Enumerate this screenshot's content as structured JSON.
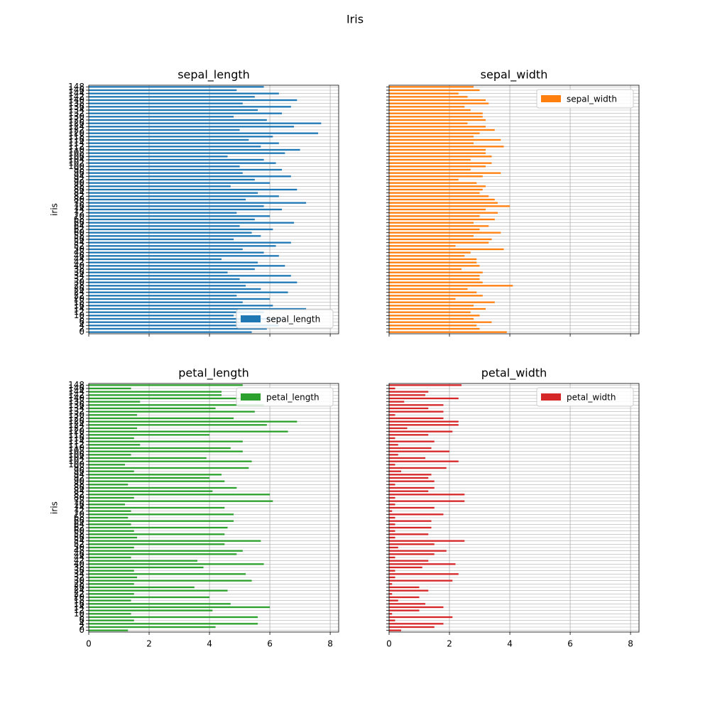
{
  "title": "Iris",
  "chart_data": [
    {
      "type": "barh",
      "title": "sepal_length",
      "ylabel": "iris",
      "categories": [
        0,
        2,
        4,
        6,
        8,
        10,
        12,
        14,
        16,
        18,
        20,
        22,
        24,
        26,
        28,
        30,
        32,
        34,
        36,
        38,
        40,
        42,
        44,
        46,
        48,
        50,
        52,
        54,
        56,
        58,
        60,
        62,
        64,
        66,
        68,
        70,
        72,
        74,
        76,
        78,
        80,
        82,
        84,
        86,
        88,
        90,
        92,
        94,
        96,
        98,
        100,
        102,
        104,
        106,
        108,
        110,
        112,
        114,
        116,
        118,
        120,
        122,
        124,
        126,
        128,
        130,
        132,
        134,
        136,
        138,
        140,
        142,
        144,
        146,
        148
      ],
      "series": [
        {
          "name": "sepal_length",
          "color": "#1f77b4",
          "values": [
            5.4,
            5.9,
            6.3,
            5.0,
            6.4,
            4.8,
            5.8,
            7.2,
            6.1,
            5.1,
            6.0,
            4.9,
            6.6,
            5.7,
            5.2,
            6.9,
            5.0,
            6.7,
            4.6,
            5.5,
            6.5,
            5.6,
            4.4,
            6.3,
            5.8,
            5.1,
            6.2,
            6.7,
            4.8,
            5.7,
            5.4,
            6.1,
            5.0,
            6.8,
            5.5,
            6.0,
            4.9,
            6.4,
            5.8,
            7.2,
            5.2,
            6.3,
            5.6,
            6.9,
            4.7,
            6.0,
            5.5,
            6.7,
            5.1,
            6.4,
            5.0,
            6.2,
            5.8,
            4.6,
            6.5,
            7.0,
            5.7,
            6.3,
            5.3,
            6.1,
            7.6,
            5.0,
            6.8,
            7.7,
            5.9,
            4.8,
            6.4,
            5.6,
            6.7,
            5.1,
            6.9,
            5.5,
            6.3,
            4.9,
            5.8
          ]
        }
      ],
      "xlim": [
        0,
        8.28
      ],
      "xticks": [
        0,
        2,
        4,
        6,
        8
      ],
      "grid": true,
      "legend": "lower right"
    },
    {
      "type": "barh",
      "title": "sepal_width",
      "series": [
        {
          "name": "sepal_width",
          "color": "#ff7f0e",
          "values": [
            3.9,
            3.0,
            2.9,
            3.4,
            2.8,
            3.0,
            2.7,
            3.2,
            2.8,
            3.5,
            2.2,
            3.1,
            2.9,
            2.6,
            4.1,
            3.1,
            3.0,
            3.0,
            3.1,
            2.4,
            3.0,
            2.9,
            2.9,
            2.5,
            2.7,
            3.8,
            2.2,
            3.3,
            3.4,
            2.8,
            3.7,
            3.0,
            3.3,
            2.8,
            3.5,
            3.0,
            3.6,
            3.2,
            4.0,
            3.6,
            3.5,
            3.3,
            3.0,
            3.1,
            3.2,
            2.9,
            2.3,
            3.1,
            3.7,
            2.7,
            3.2,
            3.4,
            2.7,
            3.4,
            3.2,
            3.2,
            3.8,
            2.8,
            3.7,
            2.8,
            3.0,
            3.5,
            3.2,
            2.6,
            3.2,
            3.1,
            3.1,
            2.7,
            2.5,
            3.3,
            3.2,
            2.6,
            2.3,
            3.0,
            2.8
          ]
        }
      ],
      "xlim": [
        0,
        8.28
      ],
      "xticks": [
        0,
        2,
        4,
        6,
        8
      ],
      "grid": true,
      "legend": "upper right"
    },
    {
      "type": "barh",
      "title": "petal_length",
      "ylabel": "iris",
      "categories": [
        0,
        2,
        4,
        6,
        8,
        10,
        12,
        14,
        16,
        18,
        20,
        22,
        24,
        26,
        28,
        30,
        32,
        34,
        36,
        38,
        40,
        42,
        44,
        46,
        48,
        50,
        52,
        54,
        56,
        58,
        60,
        62,
        64,
        66,
        68,
        70,
        72,
        74,
        76,
        78,
        80,
        82,
        84,
        86,
        88,
        90,
        92,
        94,
        96,
        98,
        100,
        102,
        104,
        106,
        108,
        110,
        112,
        114,
        116,
        118,
        120,
        122,
        124,
        126,
        128,
        130,
        132,
        134,
        136,
        138,
        140,
        142,
        144,
        146,
        148
      ],
      "series": [
        {
          "name": "petal_length",
          "color": "#2ca02c",
          "values": [
            1.3,
            4.2,
            5.6,
            1.5,
            5.6,
            1.4,
            4.1,
            6.0,
            4.7,
            1.4,
            4.0,
            1.5,
            4.6,
            3.5,
            1.5,
            5.4,
            1.6,
            5.2,
            1.5,
            3.8,
            5.8,
            3.6,
            1.4,
            4.9,
            5.1,
            1.5,
            4.5,
            5.7,
            1.6,
            4.5,
            1.5,
            4.6,
            1.4,
            4.8,
            1.3,
            4.8,
            1.4,
            4.5,
            1.2,
            6.1,
            1.5,
            6.0,
            4.1,
            4.9,
            1.3,
            4.5,
            4.0,
            4.4,
            1.5,
            5.3,
            1.2,
            5.4,
            3.9,
            1.4,
            5.1,
            4.7,
            1.7,
            5.1,
            1.5,
            4.0,
            6.6,
            1.6,
            5.9,
            6.9,
            4.8,
            1.6,
            5.5,
            4.2,
            5.8,
            1.7,
            5.7,
            4.4,
            4.4,
            1.4,
            5.1
          ]
        }
      ],
      "xlim": [
        0,
        8.28
      ],
      "xticks": [
        0,
        2,
        4,
        6,
        8
      ],
      "grid": true,
      "legend": "upper right"
    },
    {
      "type": "barh",
      "title": "petal_width",
      "series": [
        {
          "name": "petal_width",
          "color": "#d62728",
          "values": [
            0.4,
            1.5,
            1.8,
            0.2,
            2.1,
            0.1,
            1.0,
            1.8,
            1.2,
            0.3,
            1.0,
            0.1,
            1.3,
            1.0,
            0.1,
            2.1,
            0.2,
            2.3,
            0.2,
            1.1,
            2.2,
            1.3,
            0.2,
            1.5,
            1.9,
            0.3,
            1.5,
            2.5,
            0.2,
            1.3,
            0.2,
            1.4,
            0.2,
            1.4,
            0.2,
            1.8,
            0.1,
            1.5,
            0.2,
            2.5,
            0.2,
            2.5,
            1.3,
            1.5,
            0.2,
            1.5,
            1.3,
            1.4,
            0.4,
            1.9,
            0.2,
            2.3,
            1.2,
            0.3,
            2.0,
            1.4,
            0.3,
            1.5,
            0.2,
            1.3,
            2.1,
            0.6,
            2.3,
            2.3,
            1.8,
            0.2,
            1.8,
            1.3,
            1.8,
            0.5,
            2.3,
            1.2,
            1.3,
            0.2,
            2.4
          ]
        }
      ],
      "xlim": [
        0,
        8.28
      ],
      "xticks": [
        0,
        2,
        4,
        6,
        8
      ],
      "grid": true,
      "legend": "upper right"
    }
  ]
}
